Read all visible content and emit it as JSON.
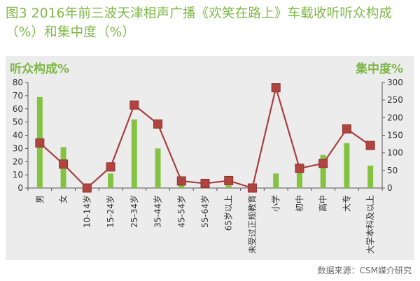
{
  "title": "图3 2016年前三波天津相声广播《欢笑在路上》车载收听听众构成（%）和集中度（%）",
  "source": "数据来源：CSM媒介研究",
  "colors": {
    "title": "#7fb747",
    "bar": "#84c341",
    "line": "#a8403f",
    "marker": "#b0443f",
    "panel": "#ececec"
  },
  "chart_data": {
    "type": "bar",
    "categories": [
      "男",
      "女",
      "10-14岁",
      "15-24岁",
      "25-34岁",
      "35-44岁",
      "45-54岁",
      "55-64岁",
      "65岁以上",
      "未受过正规教育",
      "小学",
      "初中",
      "高中",
      "大专",
      "大学本科及以上"
    ],
    "y_left_label": "听众构成%",
    "y_right_label": "集中度%",
    "y_left_lim": [
      0,
      80
    ],
    "y_left_ticks": [
      "0",
      "10",
      "20",
      "30",
      "40",
      "50",
      "60",
      "70",
      "80"
    ],
    "y_right_lim": [
      0,
      300
    ],
    "y_right_ticks": [
      "0",
      "50",
      "100",
      "150",
      "200",
      "250",
      "300"
    ],
    "series": [
      {
        "type": "bar",
        "axis": "left",
        "values": [
          69,
          31,
          0,
          11,
          52,
          30,
          3,
          1,
          2,
          0,
          11,
          13,
          25,
          34,
          17
        ]
      },
      {
        "type": "line",
        "axis": "right",
        "values": [
          128,
          68,
          0,
          60,
          236,
          182,
          20,
          13,
          21,
          0,
          285,
          56,
          70,
          168,
          121
        ]
      }
    ]
  }
}
